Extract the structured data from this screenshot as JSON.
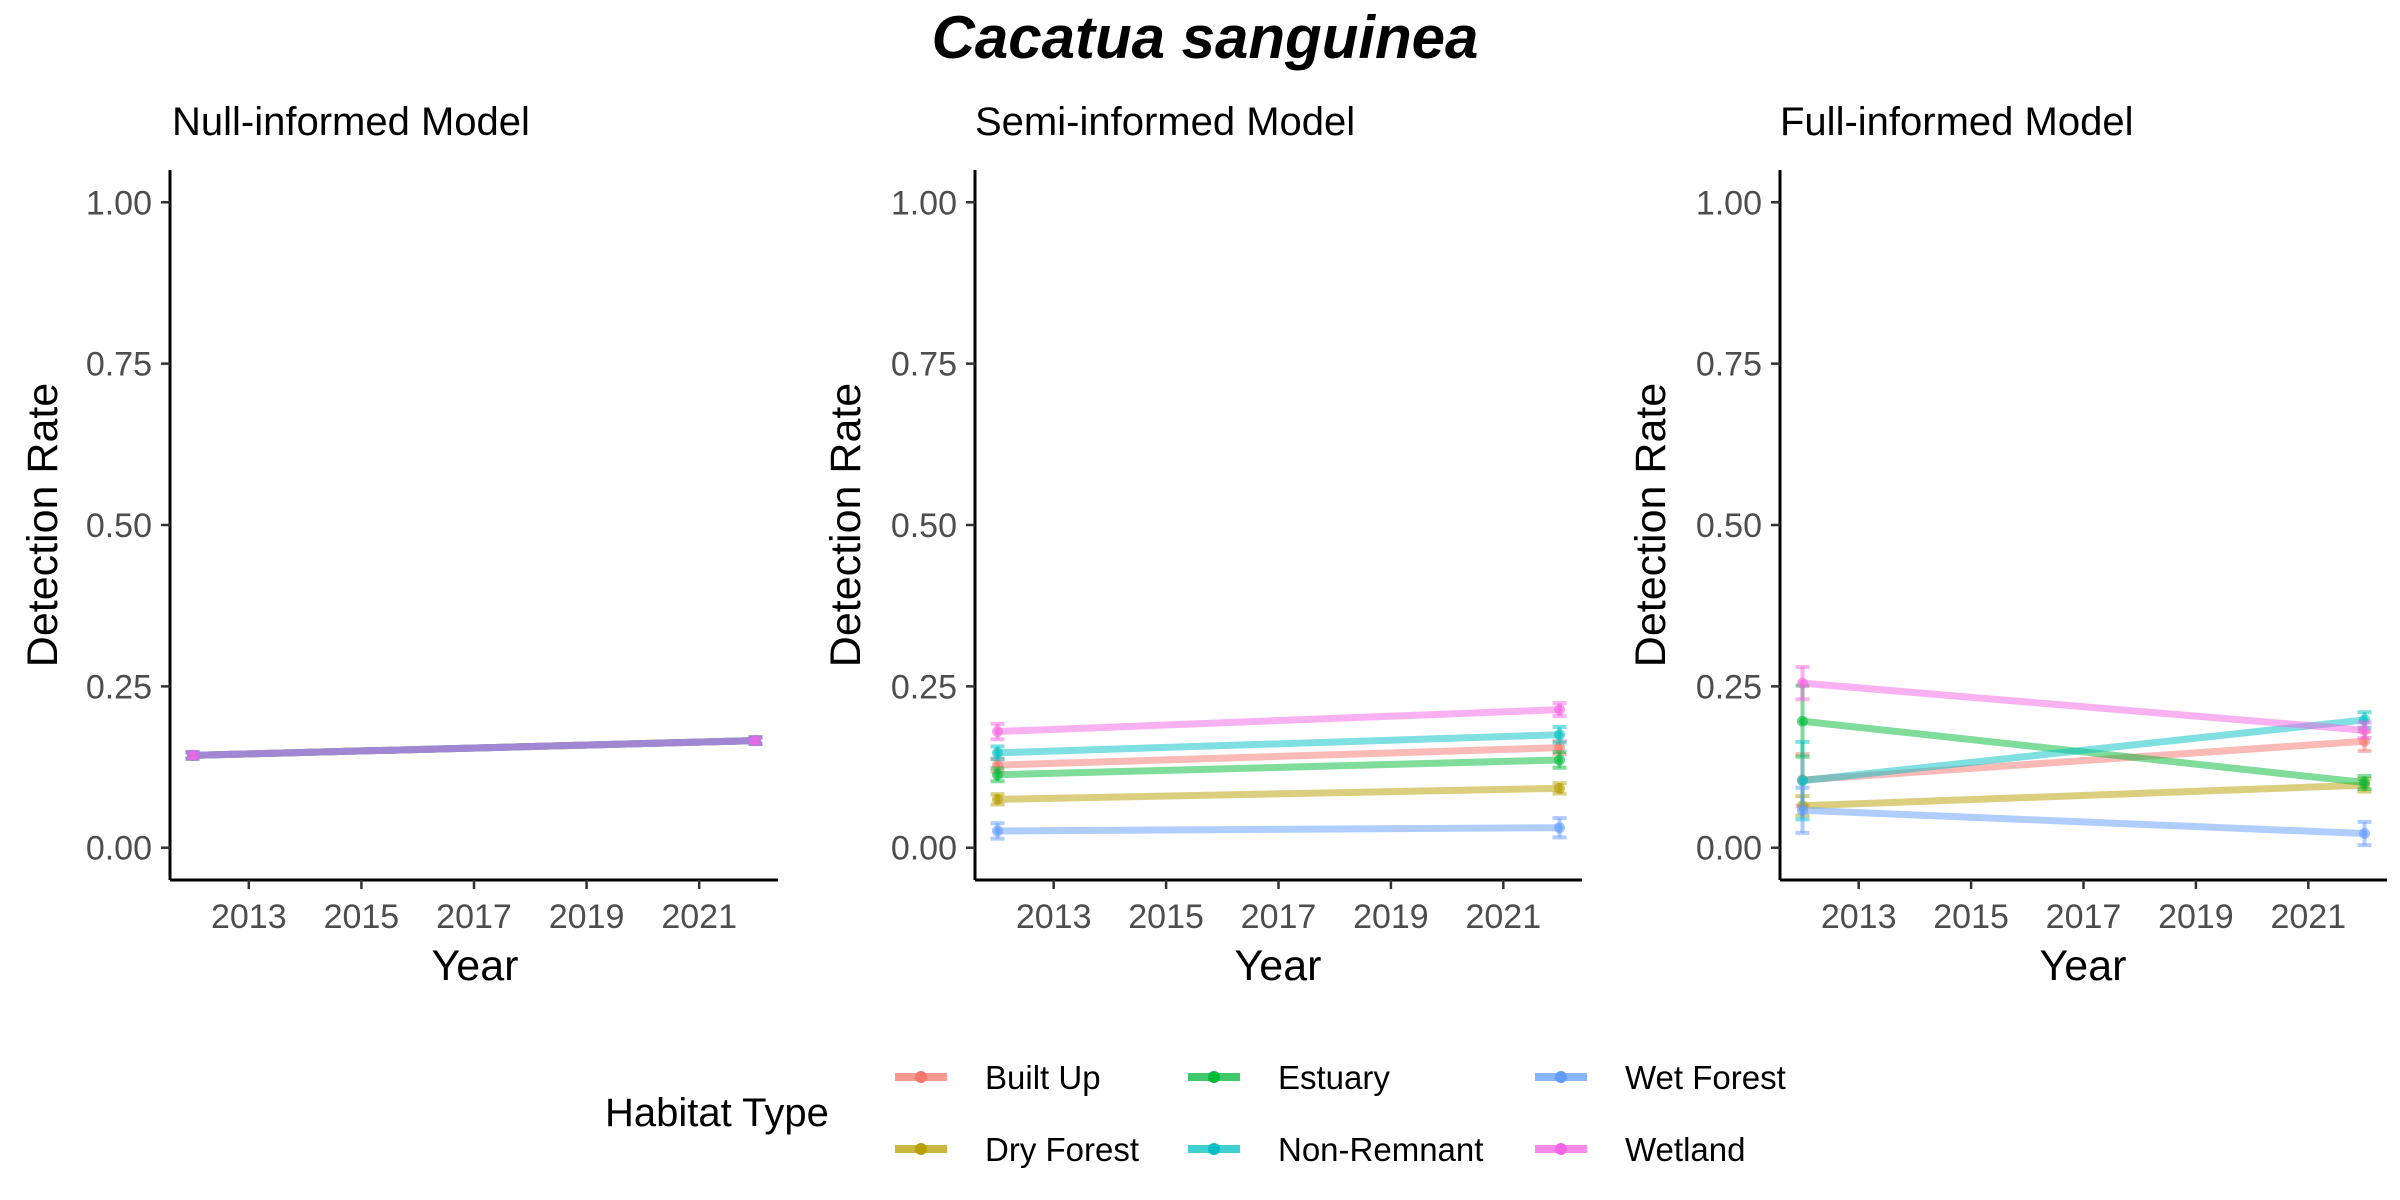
{
  "figure": {
    "title": "Cacatua sanguinea"
  },
  "legend": {
    "title": "Habitat Type",
    "entries": [
      {
        "label": "Built Up",
        "color": "#F8766D"
      },
      {
        "label": "Dry Forest",
        "color": "#B79F00"
      },
      {
        "label": "Estuary",
        "color": "#00BA38"
      },
      {
        "label": "Non-Remnant",
        "color": "#00BFC4"
      },
      {
        "label": "Wet Forest",
        "color": "#619CFF"
      },
      {
        "label": "Wetland",
        "color": "#F564E3"
      }
    ]
  },
  "chart_data": [
    {
      "type": "line",
      "title": "Null-informed Model",
      "xlabel": "Year",
      "ylabel": "Detection Rate",
      "xlim": [
        2011.6,
        2022.4
      ],
      "ylim": [
        -0.05,
        1.05
      ],
      "xticks": [
        2013,
        2015,
        2017,
        2019,
        2021
      ],
      "yticks": [
        0,
        0.25,
        0.5,
        0.75,
        1.0
      ],
      "ytick_labels": [
        "0.00",
        "0.25",
        "0.50",
        "0.75",
        "1.00"
      ],
      "grid": false,
      "x": [
        2012,
        2022
      ],
      "series": [
        {
          "name": "Built Up",
          "values": [
            0.143,
            0.166
          ],
          "error": [
            0.005,
            0.005
          ]
        },
        {
          "name": "Dry Forest",
          "values": [
            0.143,
            0.166
          ],
          "error": [
            0.005,
            0.005
          ]
        },
        {
          "name": "Estuary",
          "values": [
            0.143,
            0.166
          ],
          "error": [
            0.005,
            0.005
          ]
        },
        {
          "name": "Non-Remnant",
          "values": [
            0.143,
            0.166
          ],
          "error": [
            0.005,
            0.005
          ]
        },
        {
          "name": "Wet Forest",
          "values": [
            0.143,
            0.166
          ],
          "error": [
            0.005,
            0.005
          ]
        },
        {
          "name": "Wetland",
          "values": [
            0.143,
            0.166
          ],
          "error": [
            0.005,
            0.005
          ]
        }
      ]
    },
    {
      "type": "line",
      "title": "Semi-informed Model",
      "xlabel": "Year",
      "ylabel": "Detection Rate",
      "xlim": [
        2011.6,
        2022.4
      ],
      "ylim": [
        -0.05,
        1.05
      ],
      "xticks": [
        2013,
        2015,
        2017,
        2019,
        2021
      ],
      "yticks": [
        0,
        0.25,
        0.5,
        0.75,
        1.0
      ],
      "ytick_labels": [
        "0.00",
        "0.25",
        "0.50",
        "0.75",
        "1.00"
      ],
      "grid": false,
      "x": [
        2012,
        2022
      ],
      "series": [
        {
          "name": "Built Up",
          "values": [
            0.128,
            0.155
          ],
          "error": [
            0.01,
            0.01
          ]
        },
        {
          "name": "Dry Forest",
          "values": [
            0.075,
            0.092
          ],
          "error": [
            0.008,
            0.008
          ]
        },
        {
          "name": "Estuary",
          "values": [
            0.113,
            0.136
          ],
          "error": [
            0.01,
            0.012
          ]
        },
        {
          "name": "Non-Remnant",
          "values": [
            0.147,
            0.175
          ],
          "error": [
            0.01,
            0.012
          ]
        },
        {
          "name": "Wet Forest",
          "values": [
            0.026,
            0.031
          ],
          "error": [
            0.012,
            0.015
          ]
        },
        {
          "name": "Wetland",
          "values": [
            0.18,
            0.214
          ],
          "error": [
            0.012,
            0.01
          ]
        }
      ]
    },
    {
      "type": "line",
      "title": "Full-informed Model",
      "xlabel": "Year",
      "ylabel": "Detection Rate",
      "xlim": [
        2011.6,
        2022.4
      ],
      "ylim": [
        -0.05,
        1.05
      ],
      "xticks": [
        2013,
        2015,
        2017,
        2019,
        2021
      ],
      "yticks": [
        0,
        0.25,
        0.5,
        0.75,
        1.0
      ],
      "ytick_labels": [
        "0.00",
        "0.25",
        "0.50",
        "0.75",
        "1.00"
      ],
      "grid": false,
      "x": [
        2012,
        2022
      ],
      "series": [
        {
          "name": "Built Up",
          "values": [
            0.105,
            0.165
          ],
          "error": [
            0.04,
            0.015
          ]
        },
        {
          "name": "Dry Forest",
          "values": [
            0.065,
            0.097
          ],
          "error": [
            0.015,
            0.01
          ]
        },
        {
          "name": "Estuary",
          "values": [
            0.196,
            0.101
          ],
          "error": [
            0.055,
            0.01
          ]
        },
        {
          "name": "Non-Remnant",
          "values": [
            0.104,
            0.198
          ],
          "error": [
            0.06,
            0.012
          ]
        },
        {
          "name": "Wet Forest",
          "values": [
            0.058,
            0.022
          ],
          "error": [
            0.035,
            0.018
          ]
        },
        {
          "name": "Wetland",
          "values": [
            0.255,
            0.182
          ],
          "error": [
            0.025,
            0.012
          ]
        }
      ]
    }
  ]
}
